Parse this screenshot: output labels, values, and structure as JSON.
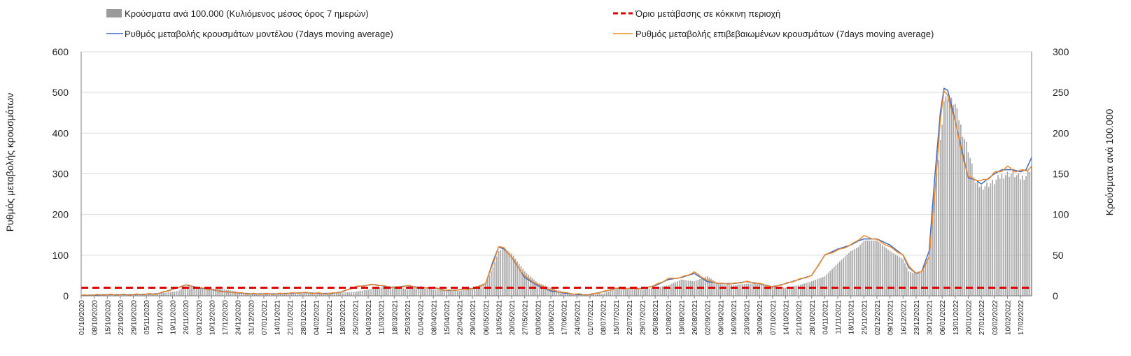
{
  "chart_data": {
    "type": "bar+line",
    "legend": {
      "bars": "Κρούσματα ανά 100.000 (Κυλιόμενος μέσος όρος 7 ημερών)",
      "threshold": "Όριο μετάβασης σε κόκκινη περιοχή",
      "model": "Ρυθμός μεταβολής κρουσμάτων μοντέλου (7days moving average)",
      "confirmed": "Ρυθμός μεταβολής επιβεβαιωμένων κρουσμάτων (7days moving average)"
    },
    "ylabel": "Ρυθμός μεταβολής κρουσμάτων",
    "y2label": "Κρούσματα ανά 100.000",
    "ylim": [
      0,
      600
    ],
    "y2lim": [
      0,
      300
    ],
    "yticks": [
      "0",
      "100",
      "200",
      "300",
      "400",
      "500",
      "600"
    ],
    "y2ticks": [
      "0",
      "50",
      "100",
      "150",
      "200",
      "250",
      "300"
    ],
    "x_start": "2020-10-01",
    "x_end": "2022-02-23",
    "x_tick_labels": [
      "01/10/2020",
      "08/10/2020",
      "15/10/2020",
      "22/10/2020",
      "29/10/2020",
      "05/11/2020",
      "12/11/2020",
      "19/11/2020",
      "26/11/2020",
      "03/12/2020",
      "10/12/2020",
      "17/12/2020",
      "24/12/2020",
      "31/12/2020",
      "07/01/2021",
      "14/01/2021",
      "21/01/2021",
      "28/01/2021",
      "04/02/2021",
      "11/02/2021",
      "18/02/2021",
      "25/02/2021",
      "04/03/2021",
      "11/03/2021",
      "18/03/2021",
      "25/03/2021",
      "01/04/2021",
      "08/04/2021",
      "15/04/2021",
      "22/04/2021",
      "29/04/2021",
      "06/05/2021",
      "13/05/2021",
      "20/05/2021",
      "27/05/2021",
      "03/06/2021",
      "10/06/2021",
      "17/06/2021",
      "24/06/2021",
      "01/07/2021",
      "08/07/2021",
      "15/07/2021",
      "22/07/2021",
      "29/07/2021",
      "05/08/2021",
      "12/08/2021",
      "19/08/2021",
      "26/08/2021",
      "02/09/2021",
      "09/09/2021",
      "16/09/2021",
      "23/09/2021",
      "30/09/2021",
      "07/10/2021",
      "14/10/2021",
      "21/10/2021",
      "28/10/2021",
      "04/11/2021",
      "11/11/2021",
      "18/11/2021",
      "25/11/2021",
      "02/12/2021",
      "09/12/2021",
      "16/12/2021",
      "23/12/2021",
      "30/12/2021",
      "06/01/2022",
      "13/01/2022",
      "20/01/2022",
      "27/01/2022",
      "03/02/2022",
      "10/02/2022",
      "17/02/2022"
    ],
    "threshold_value": 20,
    "anchor_dates": [
      "2020-10-01",
      "2020-10-14",
      "2020-10-28",
      "2020-11-11",
      "2020-11-22",
      "2020-11-26",
      "2020-12-03",
      "2020-12-17",
      "2020-12-31",
      "2021-01-14",
      "2021-01-28",
      "2021-02-11",
      "2021-02-18",
      "2021-02-25",
      "2021-03-07",
      "2021-03-18",
      "2021-03-25",
      "2021-04-01",
      "2021-04-08",
      "2021-04-15",
      "2021-04-22",
      "2021-04-29",
      "2021-05-06",
      "2021-05-10",
      "2021-05-13",
      "2021-05-16",
      "2021-05-20",
      "2021-05-27",
      "2021-06-03",
      "2021-06-10",
      "2021-06-17",
      "2021-06-24",
      "2021-07-01",
      "2021-07-08",
      "2021-07-15",
      "2021-07-29",
      "2021-08-05",
      "2021-08-12",
      "2021-08-19",
      "2021-08-26",
      "2021-09-02",
      "2021-09-09",
      "2021-09-16",
      "2021-09-23",
      "2021-09-30",
      "2021-10-07",
      "2021-10-14",
      "2021-10-21",
      "2021-10-28",
      "2021-11-04",
      "2021-11-11",
      "2021-11-18",
      "2021-11-22",
      "2021-11-25",
      "2021-12-02",
      "2021-12-09",
      "2021-12-16",
      "2021-12-19",
      "2021-12-23",
      "2021-12-26",
      "2021-12-30",
      "2022-01-02",
      "2022-01-05",
      "2022-01-07",
      "2022-01-09",
      "2022-01-13",
      "2022-01-17",
      "2022-01-20",
      "2022-01-24",
      "2022-01-27",
      "2022-02-03",
      "2022-02-07",
      "2022-02-10",
      "2022-02-13",
      "2022-02-17",
      "2022-02-20",
      "2022-02-23"
    ],
    "bar_anchor_values": [
      0.5,
      1.5,
      1.5,
      2.5,
      6,
      12,
      10,
      8,
      2,
      2,
      3,
      4,
      4,
      5,
      9,
      12,
      8,
      12,
      8,
      7,
      6,
      9,
      16,
      35,
      55,
      58,
      52,
      30,
      16,
      10,
      5,
      2,
      1,
      3,
      8,
      8,
      10,
      13,
      20,
      18,
      24,
      14,
      13,
      15,
      15,
      12,
      10,
      13,
      18,
      24,
      40,
      55,
      60,
      68,
      68,
      55,
      45,
      30,
      27,
      30,
      50,
      125,
      190,
      240,
      245,
      235,
      200,
      180,
      138,
      134,
      140,
      148,
      150,
      150,
      145,
      148,
      160
    ],
    "model_anchor_values": [
      1,
      3,
      3,
      5,
      20,
      27,
      20,
      10,
      5,
      5,
      8,
      5,
      10,
      22,
      28,
      20,
      25,
      20,
      20,
      13,
      15,
      18,
      30,
      85,
      120,
      115,
      95,
      45,
      25,
      12,
      7,
      3,
      3,
      10,
      18,
      18,
      25,
      40,
      45,
      55,
      35,
      30,
      30,
      35,
      30,
      22,
      30,
      40,
      50,
      100,
      115,
      125,
      135,
      140,
      140,
      125,
      100,
      70,
      55,
      60,
      110,
      290,
      450,
      510,
      505,
      430,
      350,
      290,
      285,
      275,
      300,
      310,
      310,
      310,
      305,
      310,
      340
    ],
    "confirmed_anchor_values": [
      1,
      3,
      3,
      5,
      20,
      27,
      20,
      10,
      5,
      5,
      8,
      5,
      10,
      22,
      28,
      20,
      25,
      20,
      20,
      13,
      15,
      18,
      30,
      80,
      120,
      118,
      95,
      48,
      28,
      14,
      8,
      4,
      3,
      10,
      18,
      18,
      26,
      42,
      45,
      58,
      38,
      30,
      30,
      35,
      30,
      22,
      30,
      40,
      50,
      100,
      112,
      125,
      138,
      147,
      138,
      120,
      100,
      75,
      55,
      60,
      95,
      250,
      430,
      500,
      495,
      425,
      345,
      290,
      288,
      280,
      300,
      310,
      315,
      310,
      305,
      310,
      318
    ]
  }
}
